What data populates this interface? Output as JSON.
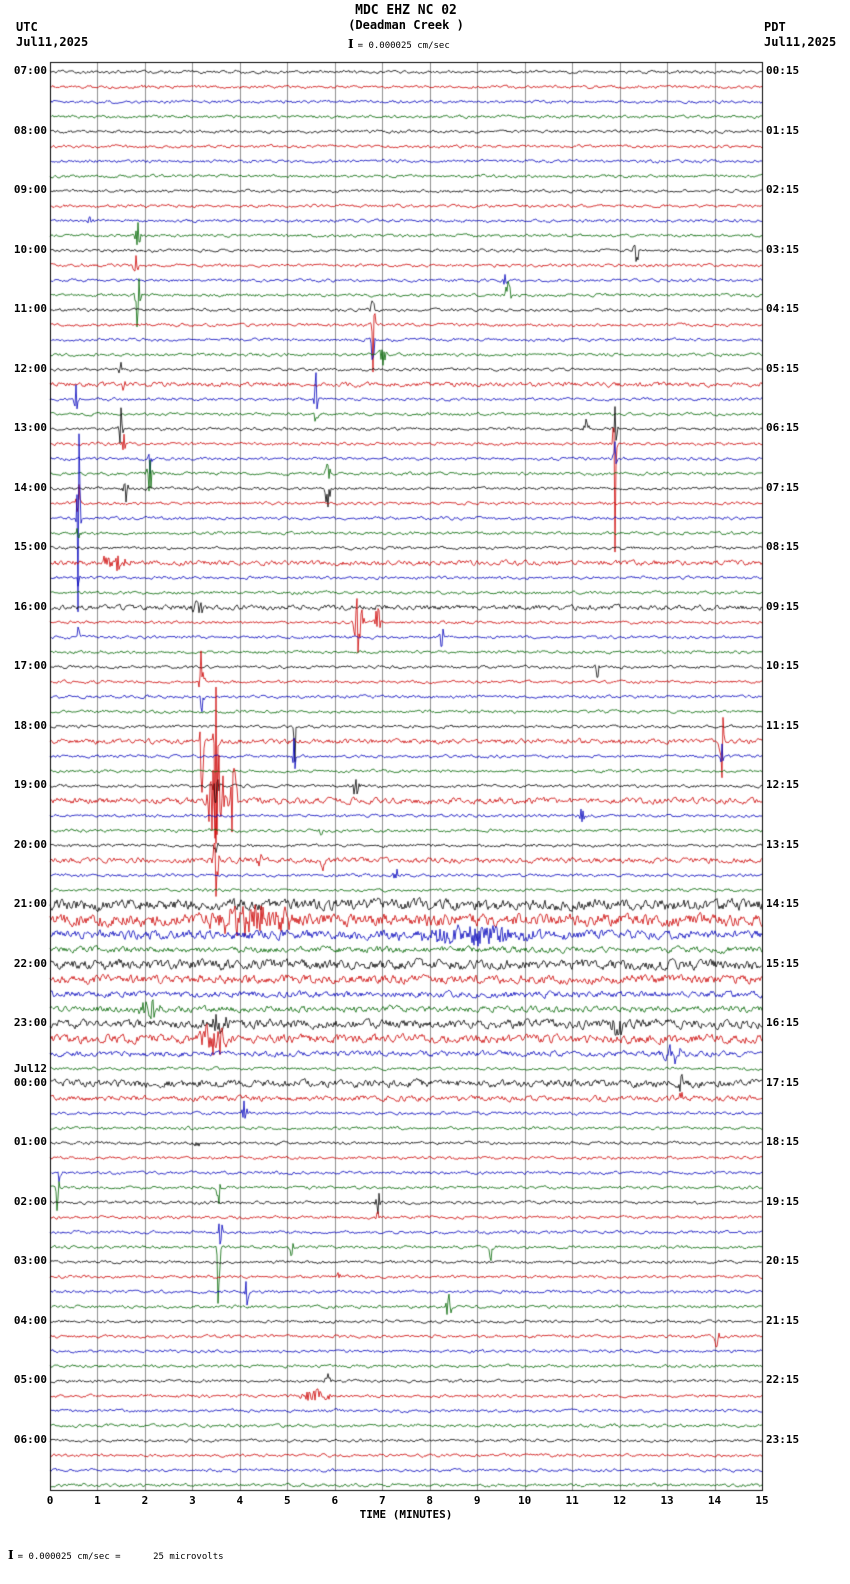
{
  "header": {
    "title": "MDC EHZ NC 02",
    "subtitle": "(Deadman Creek )",
    "scale_glyph": "I",
    "scale_label": "= 0.000025 cm/sec",
    "left": {
      "tz": "UTC",
      "date": "Jul11,2025"
    },
    "right": {
      "tz": "PDT",
      "date": "Jul11,2025"
    }
  },
  "footer": {
    "xlabel": "TIME (MINUTES)",
    "scale_glyph": "I",
    "scale_note": "= 0.000025 cm/sec =      25 microvolts"
  },
  "chart_data": {
    "type": "line",
    "kind": "helicorder-seismogram",
    "title": "MDC EHZ NC 02 (Deadman Creek )",
    "xlabel": "TIME (MINUTES)",
    "minutes_per_row": 15,
    "rows": 96,
    "colors_cycle": [
      "#000000",
      "#cc0000",
      "#0000bb",
      "#006600"
    ],
    "grid_color": "#8f8f8f",
    "border_color": "#000000",
    "base_noise_amp": 1.2,
    "x_axis": {
      "ticks": [
        0,
        1,
        2,
        3,
        4,
        5,
        6,
        7,
        8,
        9,
        10,
        11,
        12,
        13,
        14,
        15
      ],
      "range": [
        0,
        15
      ]
    },
    "left_labels": [
      {
        "row": 0,
        "text": "07:00"
      },
      {
        "row": 4,
        "text": "08:00"
      },
      {
        "row": 8,
        "text": "09:00"
      },
      {
        "row": 12,
        "text": "10:00"
      },
      {
        "row": 16,
        "text": "11:00"
      },
      {
        "row": 20,
        "text": "12:00"
      },
      {
        "row": 24,
        "text": "13:00"
      },
      {
        "row": 28,
        "text": "14:00"
      },
      {
        "row": 32,
        "text": "15:00"
      },
      {
        "row": 36,
        "text": "16:00"
      },
      {
        "row": 40,
        "text": "17:00"
      },
      {
        "row": 44,
        "text": "18:00"
      },
      {
        "row": 48,
        "text": "19:00"
      },
      {
        "row": 52,
        "text": "20:00"
      },
      {
        "row": 56,
        "text": "21:00"
      },
      {
        "row": 60,
        "text": "22:00"
      },
      {
        "row": 64,
        "text": "23:00"
      },
      {
        "row": 68,
        "text": "00:00",
        "date": "Jul12"
      },
      {
        "row": 72,
        "text": "01:00"
      },
      {
        "row": 76,
        "text": "02:00"
      },
      {
        "row": 80,
        "text": "03:00"
      },
      {
        "row": 84,
        "text": "04:00"
      },
      {
        "row": 88,
        "text": "05:00"
      },
      {
        "row": 92,
        "text": "06:00"
      }
    ],
    "right_labels": [
      {
        "row": 0,
        "text": "00:15"
      },
      {
        "row": 4,
        "text": "01:15"
      },
      {
        "row": 8,
        "text": "02:15"
      },
      {
        "row": 12,
        "text": "03:15"
      },
      {
        "row": 16,
        "text": "04:15"
      },
      {
        "row": 20,
        "text": "05:15"
      },
      {
        "row": 24,
        "text": "06:15"
      },
      {
        "row": 28,
        "text": "07:15"
      },
      {
        "row": 32,
        "text": "08:15"
      },
      {
        "row": 36,
        "text": "09:15"
      },
      {
        "row": 40,
        "text": "10:15"
      },
      {
        "row": 44,
        "text": "11:15"
      },
      {
        "row": 48,
        "text": "12:15"
      },
      {
        "row": 52,
        "text": "13:15"
      },
      {
        "row": 56,
        "text": "14:15"
      },
      {
        "row": 60,
        "text": "15:15"
      },
      {
        "row": 64,
        "text": "16:15"
      },
      {
        "row": 68,
        "text": "17:15"
      },
      {
        "row": 72,
        "text": "18:15"
      },
      {
        "row": 76,
        "text": "19:15"
      },
      {
        "row": 80,
        "text": "20:15"
      },
      {
        "row": 84,
        "text": "21:15"
      },
      {
        "row": 88,
        "text": "22:15"
      },
      {
        "row": 92,
        "text": "23:15"
      }
    ],
    "row_noise": {
      "21": 1.8,
      "33": 2,
      "36": 2,
      "45": 2,
      "49": 2.5,
      "53": 2.2,
      "56": 4.5,
      "57": 5,
      "58": 3.5,
      "59": 2.5,
      "60": 4,
      "61": 3.5,
      "62": 2.5,
      "63": 2.5,
      "64": 3.5,
      "65": 3.5,
      "66": 2.2,
      "68": 3,
      "69": 2.2
    },
    "events": [
      {
        "row": 9,
        "m": 10.9,
        "amp": 7,
        "w": 0.04
      },
      {
        "row": 10,
        "m": 0.85,
        "amp": 6,
        "w": 0.04
      },
      {
        "row": 11,
        "m": 1.85,
        "amp": 16,
        "w": 0.05
      },
      {
        "row": 12,
        "m": 12.35,
        "amp": 22,
        "w": 0.05
      },
      {
        "row": 13,
        "m": 1.8,
        "amp": 12,
        "w": 0.05
      },
      {
        "row": 14,
        "m": 9.6,
        "amp": 8,
        "w": 0.05
      },
      {
        "row": 15,
        "m": 1.85,
        "amp": 55,
        "w": 0.04
      },
      {
        "row": 15,
        "m": 9.65,
        "amp": 14,
        "w": 0.06
      },
      {
        "row": 16,
        "m": 6.8,
        "amp": 30,
        "w": 0.03
      },
      {
        "row": 17,
        "m": 6.8,
        "amp": 120,
        "w": 0.03
      },
      {
        "row": 18,
        "m": 6.8,
        "amp": 40,
        "w": 0.03
      },
      {
        "row": 19,
        "m": 7.0,
        "amp": 12,
        "w": 0.08
      },
      {
        "row": 20,
        "m": 1.5,
        "amp": 12,
        "w": 0.04
      },
      {
        "row": 21,
        "m": 1.55,
        "amp": 10,
        "w": 0.05
      },
      {
        "row": 22,
        "m": 0.55,
        "amp": 28,
        "w": 0.04
      },
      {
        "row": 22,
        "m": 5.6,
        "amp": 45,
        "w": 0.03
      },
      {
        "row": 23,
        "m": 5.6,
        "amp": 12,
        "w": 0.04
      },
      {
        "row": 24,
        "m": 11.3,
        "amp": 12,
        "w": 0.05
      },
      {
        "row": 24,
        "m": 1.5,
        "amp": 25,
        "w": 0.04
      },
      {
        "row": 24,
        "m": 11.9,
        "amp": 25,
        "w": 0.04
      },
      {
        "row": 25,
        "m": 11.9,
        "amp": 110,
        "w": 0.03
      },
      {
        "row": 25,
        "m": 1.55,
        "amp": 12,
        "w": 0.05
      },
      {
        "row": 26,
        "m": 11.9,
        "amp": 20,
        "w": 0.03
      },
      {
        "row": 26,
        "m": 2.1,
        "amp": 15,
        "w": 0.05
      },
      {
        "row": 27,
        "m": 2.1,
        "amp": 28,
        "w": 0.05
      },
      {
        "row": 27,
        "m": 5.85,
        "amp": 12,
        "w": 0.05
      },
      {
        "row": 28,
        "m": 5.85,
        "amp": 22,
        "w": 0.05
      },
      {
        "row": 28,
        "m": 1.6,
        "amp": 14,
        "w": 0.05
      },
      {
        "row": 29,
        "m": 0.6,
        "amp": 20,
        "w": 0.04
      },
      {
        "row": 30,
        "m": 0.6,
        "amp": 120,
        "w": 0.03
      },
      {
        "row": 31,
        "m": 0.6,
        "amp": 15,
        "w": 0.03
      },
      {
        "row": 33,
        "m": 1.35,
        "amp": 10,
        "w": 0.25
      },
      {
        "row": 34,
        "m": 0.6,
        "amp": 12,
        "w": 0.03
      },
      {
        "row": 36,
        "m": 3.1,
        "amp": 9,
        "w": 0.15
      },
      {
        "row": 37,
        "m": 6.5,
        "amp": 45,
        "w": 0.08
      },
      {
        "row": 37,
        "m": 6.9,
        "amp": 20,
        "w": 0.05
      },
      {
        "row": 38,
        "m": 8.25,
        "amp": 12,
        "w": 0.05
      },
      {
        "row": 38,
        "m": 0.6,
        "amp": 18,
        "w": 0.03
      },
      {
        "row": 40,
        "m": 11.55,
        "amp": 14,
        "w": 0.05
      },
      {
        "row": 41,
        "m": 3.2,
        "amp": 55,
        "w": 0.04
      },
      {
        "row": 42,
        "m": 3.2,
        "amp": 15,
        "w": 0.04
      },
      {
        "row": 44,
        "m": 5.15,
        "amp": 55,
        "w": 0.03
      },
      {
        "row": 45,
        "m": 3.5,
        "amp": 140,
        "w": 0.04
      },
      {
        "row": 45,
        "m": 3.2,
        "amp": 60,
        "w": 0.03
      },
      {
        "row": 45,
        "m": 14.15,
        "amp": 45,
        "w": 0.04
      },
      {
        "row": 46,
        "m": 14.15,
        "amp": 15,
        "w": 0.04
      },
      {
        "row": 46,
        "m": 5.15,
        "amp": 20,
        "w": 0.03
      },
      {
        "row": 48,
        "m": 3.5,
        "amp": 25,
        "w": 0.06
      },
      {
        "row": 48,
        "m": 6.45,
        "amp": 18,
        "w": 0.05
      },
      {
        "row": 49,
        "m": 3.5,
        "amp": 60,
        "w": 0.15
      },
      {
        "row": 49,
        "m": 3.85,
        "amp": 40,
        "w": 0.1
      },
      {
        "row": 50,
        "m": 11.2,
        "amp": 10,
        "w": 0.05
      },
      {
        "row": 51,
        "m": 5.7,
        "amp": 12,
        "w": 0.05
      },
      {
        "row": 52,
        "m": 3.5,
        "amp": 10,
        "w": 0.05
      },
      {
        "row": 53,
        "m": 3.5,
        "amp": 40,
        "w": 0.06
      },
      {
        "row": 53,
        "m": 4.4,
        "amp": 20,
        "w": 0.05
      },
      {
        "row": 53,
        "m": 5.75,
        "amp": 14,
        "w": 0.05
      },
      {
        "row": 54,
        "m": 7.3,
        "amp": 8,
        "w": 0.05
      },
      {
        "row": 57,
        "m": 4.3,
        "amp": 14,
        "w": 0.8
      },
      {
        "row": 58,
        "m": 9.0,
        "amp": 9,
        "w": 1.2
      },
      {
        "row": 63,
        "m": 2.1,
        "amp": 12,
        "w": 0.2
      },
      {
        "row": 64,
        "m": 3.5,
        "amp": 12,
        "w": 0.2
      },
      {
        "row": 64,
        "m": 11.95,
        "amp": 10,
        "w": 0.15
      },
      {
        "row": 65,
        "m": 3.45,
        "amp": 18,
        "w": 0.25
      },
      {
        "row": 66,
        "m": 13.1,
        "amp": 12,
        "w": 0.2
      },
      {
        "row": 68,
        "m": 13.3,
        "amp": 40,
        "w": 0.03
      },
      {
        "row": 69,
        "m": 13.3,
        "amp": 10,
        "w": 0.04
      },
      {
        "row": 70,
        "m": 4.1,
        "amp": 12,
        "w": 0.05
      },
      {
        "row": 72,
        "m": 3.1,
        "amp": 8,
        "w": 0.05
      },
      {
        "row": 74,
        "m": 0.2,
        "amp": 10,
        "w": 0.04
      },
      {
        "row": 75,
        "m": 0.15,
        "amp": 25,
        "w": 0.04
      },
      {
        "row": 75,
        "m": 3.55,
        "amp": 20,
        "w": 0.04
      },
      {
        "row": 76,
        "m": 6.9,
        "amp": 14,
        "w": 0.05
      },
      {
        "row": 77,
        "m": 6.9,
        "amp": 8,
        "w": 0.05
      },
      {
        "row": 78,
        "m": 3.6,
        "amp": 15,
        "w": 0.05
      },
      {
        "row": 79,
        "m": 3.55,
        "amp": 70,
        "w": 0.03
      },
      {
        "row": 79,
        "m": 9.3,
        "amp": 14,
        "w": 0.05
      },
      {
        "row": 79,
        "m": 5.1,
        "amp": 10,
        "w": 0.05
      },
      {
        "row": 81,
        "m": 6.1,
        "amp": 10,
        "w": 0.05
      },
      {
        "row": 82,
        "m": 4.15,
        "amp": 16,
        "w": 0.04
      },
      {
        "row": 83,
        "m": 8.4,
        "amp": 14,
        "w": 0.05
      },
      {
        "row": 85,
        "m": 14.05,
        "amp": 14,
        "w": 0.05
      },
      {
        "row": 88,
        "m": 5.85,
        "amp": 9,
        "w": 0.06
      },
      {
        "row": 89,
        "m": 5.6,
        "amp": 6,
        "w": 0.3
      }
    ]
  }
}
